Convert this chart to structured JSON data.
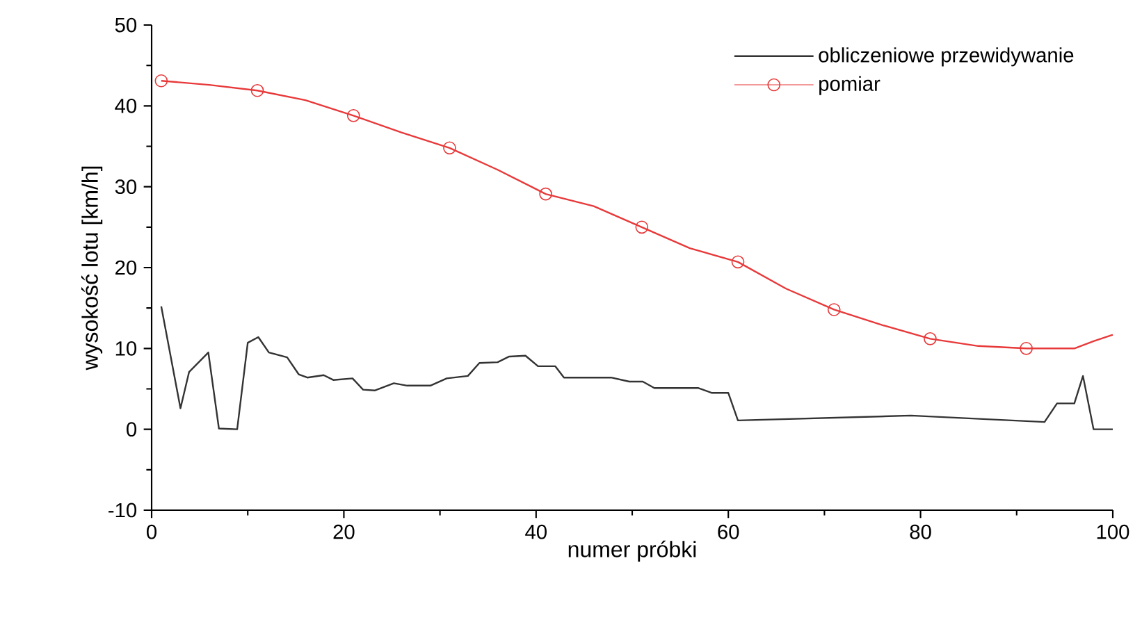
{
  "chart_data": {
    "type": "line",
    "xlabel": "numer próbki",
    "ylabel": "wysokość lotu [km/h]",
    "xlim": [
      0,
      100
    ],
    "ylim": [
      -10,
      50
    ],
    "xticks": [
      0,
      20,
      40,
      60,
      80,
      100
    ],
    "yticks": [
      -10,
      0,
      10,
      20,
      30,
      40,
      50
    ],
    "grid": false,
    "legend": "top right",
    "line_style": "solid",
    "series": [
      {
        "name": "obliczeniowe przewidywanie",
        "color": "#333333",
        "marker": "none",
        "x": [
          1,
          3,
          3.9,
          5.9,
          7,
          8.9,
          10,
          11.1,
          12.2,
          14.1,
          15.3,
          16.2,
          17.9,
          18.9,
          20.9,
          22,
          23.2,
          25.2,
          26.6,
          29,
          30.7,
          32.9,
          34.1,
          36,
          37.2,
          38.9,
          40.2,
          42,
          42.9,
          47.8,
          49.7,
          51.1,
          52.3,
          56.9,
          58.3,
          60,
          61,
          79,
          92.9,
          94.2,
          96,
          96.9,
          98,
          100
        ],
        "values": [
          15.2,
          2.6,
          7.1,
          9.5,
          0.1,
          0,
          10.7,
          11.4,
          9.5,
          8.9,
          6.8,
          6.4,
          6.7,
          6.1,
          6.3,
          4.9,
          4.8,
          5.7,
          5.4,
          5.4,
          6.3,
          6.6,
          8.2,
          8.3,
          9.0,
          9.1,
          7.8,
          7.8,
          6.4,
          6.4,
          5.9,
          5.9,
          5.1,
          5.1,
          4.5,
          4.5,
          1.1,
          1.7,
          0.9,
          3.2,
          3.2,
          6.6,
          0,
          0
        ]
      },
      {
        "color": "#e8393a",
        "marker": "none",
        "x": [
          1,
          6,
          11,
          16,
          21,
          26,
          31,
          36,
          41,
          46,
          51,
          56,
          61,
          66,
          71,
          76,
          81,
          86,
          91,
          96,
          98,
          100
        ],
        "values": [
          43.1,
          42.6,
          41.9,
          40.7,
          38.8,
          36.7,
          34.8,
          32.1,
          29.1,
          27.6,
          25.0,
          22.4,
          20.7,
          17.4,
          14.8,
          12.9,
          11.2,
          10.3,
          10.0,
          10.0,
          10.9,
          11.7
        ]
      },
      {
        "name": "pomiar",
        "type": "scatter",
        "color": "#e8393a",
        "marker": "circle",
        "x": [
          1,
          11,
          21,
          31,
          41,
          51,
          61,
          71,
          81,
          91
        ],
        "values": [
          43.1,
          41.9,
          38.8,
          34.8,
          29.1,
          25.0,
          20.7,
          14.8,
          11.2,
          10.0
        ]
      }
    ]
  }
}
